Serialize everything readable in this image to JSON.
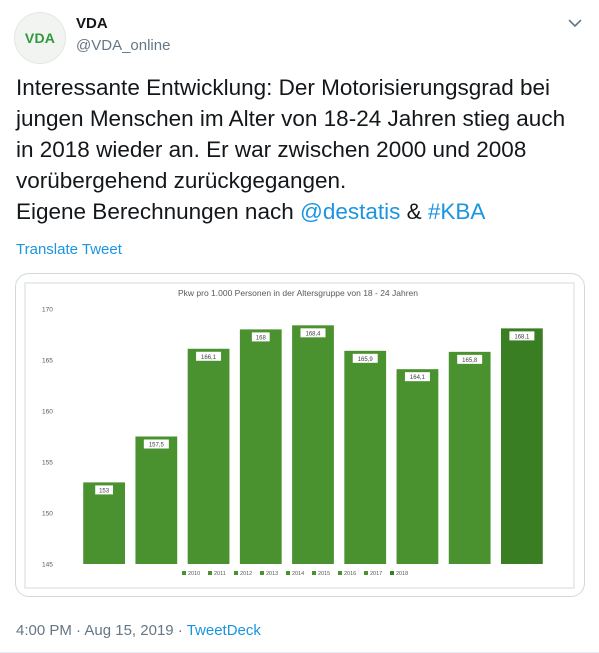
{
  "tweet": {
    "avatar_text": "VDA",
    "name": "VDA",
    "handle": "@VDA_online",
    "text_lines": [
      "Interessante Entwicklung: Der Motorisierungsgrad bei",
      "jungen Menschen im Alter von 18-24 Jahren stieg auch",
      "in 2018 wieder an. Er war zwischen 2000 und 2008",
      "vorübergehend zurückgegangen."
    ],
    "last_line_prefix": "Eigene Berechnungen nach ",
    "mention": "@destatis",
    "ampersand": " & ",
    "hashtag": "#KBA",
    "translate_label": "Translate Tweet",
    "time": "4:00 PM",
    "sep1": " · ",
    "date": "Aug 15, 2019",
    "sep2": " · ",
    "source": "TweetDeck",
    "icons": {
      "menu": "chevron-down-icon"
    }
  },
  "chart_data": {
    "type": "bar",
    "title": "Pkw pro 1.000 Personen in der Altersgruppe von 18 - 24 Jahren",
    "categories": [
      "2010",
      "2011",
      "2012",
      "2013",
      "2014",
      "2015",
      "2016",
      "2017",
      "2018"
    ],
    "values": [
      153,
      157.5,
      166.1,
      168,
      168.4,
      165.9,
      164.1,
      165.8,
      168.1
    ],
    "value_labels": [
      "153",
      "157,5",
      "166,1",
      "168",
      "168,4",
      "165,9",
      "164,1",
      "165,8",
      "168,1"
    ],
    "ylim": [
      145,
      170
    ],
    "yticks": [
      145,
      150,
      155,
      160,
      165,
      170
    ],
    "xlabel": "",
    "ylabel": "",
    "grid": false,
    "legend": "bottom",
    "colors": {
      "bar": "#4a9130",
      "bar_last": "#3a7e23",
      "label_bg": "#ffffff"
    }
  }
}
